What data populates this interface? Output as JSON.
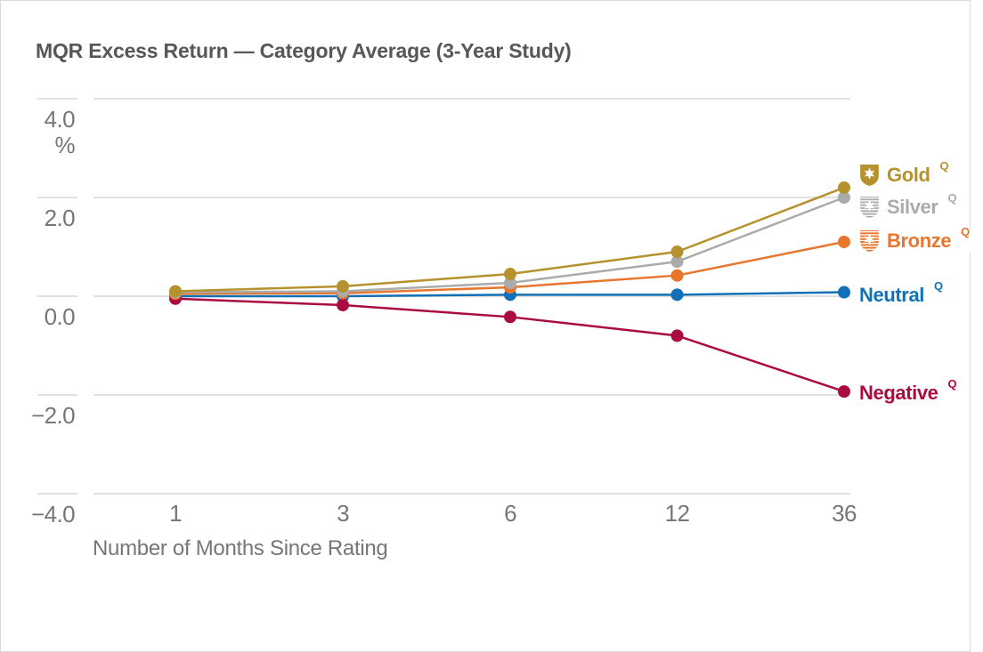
{
  "chart_data": {
    "type": "line",
    "title": "MQR Excess Return — Category Average (3-Year Study)",
    "xlabel": "Number of Months Since Rating",
    "ylabel": "%",
    "y_unit": "%",
    "categories": [
      "1",
      "3",
      "6",
      "12",
      "36"
    ],
    "x_values_months": [
      1,
      3,
      6,
      12,
      36
    ],
    "y_ticks": {
      "labels": [
        "4.0",
        "2.0",
        "0.0",
        "−2.0",
        "−4.0"
      ],
      "values": [
        4,
        2,
        0,
        -2,
        -4
      ]
    },
    "ylim": [
      -4,
      4
    ],
    "grid": "horizontal",
    "legend_position": "right",
    "series": [
      {
        "name": "Gold",
        "qualifier": "Q",
        "color": "#B5922E",
        "icon": "gold-medal-icon",
        "values": [
          0.1,
          0.2,
          0.45,
          0.9,
          2.2
        ]
      },
      {
        "name": "Silver",
        "qualifier": "Q",
        "color": "#ABABAB",
        "icon": "silver-medal-icon",
        "values": [
          0.08,
          0.1,
          0.27,
          0.7,
          2.0
        ]
      },
      {
        "name": "Bronze",
        "qualifier": "Q",
        "color": "#E8762C",
        "icon": "bronze-medal-icon",
        "values": [
          0.05,
          0.06,
          0.18,
          0.42,
          1.1
        ]
      },
      {
        "name": "Neutral",
        "qualifier": "Q",
        "color": "#1271B6",
        "icon": null,
        "values": [
          0.0,
          0.0,
          0.03,
          0.03,
          0.08
        ]
      },
      {
        "name": "Negative",
        "qualifier": "Q",
        "color": "#AB0C40",
        "icon": null,
        "values": [
          -0.05,
          -0.18,
          -0.42,
          -0.8,
          -1.93
        ]
      }
    ],
    "style": {
      "grid_color": "#E1E1E1",
      "axis_text_color": "#767676",
      "title_color": "#57575A"
    }
  }
}
